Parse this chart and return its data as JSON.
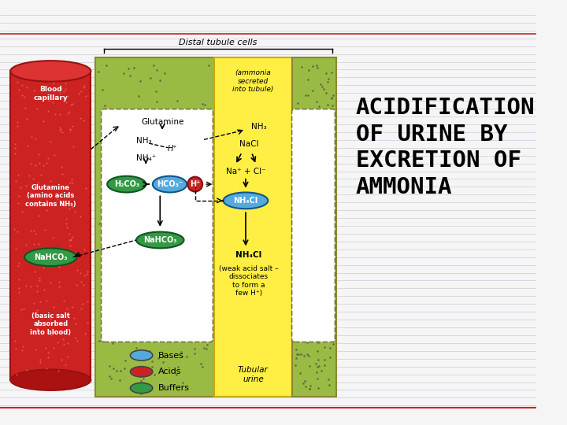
{
  "title": "ACIDIFICATION\nOF URINE BY\nEXCRETION OF\nAMMONIA",
  "bg_color": "#f5f5f5",
  "line_color": "#ccccdd",
  "red_line_color": "#cc2222",
  "red_cyl_color": "#cc2222",
  "red_cyl_dark": "#991111",
  "green_color": "#99bb44",
  "yellow_color": "#ffee44",
  "blue_oval": "#55aadd",
  "red_oval": "#cc2222",
  "green_oval": "#339944",
  "dot_color": "#666644",
  "legend": [
    {
      "label": "Bases",
      "color": "#55aadd"
    },
    {
      "label": "Acids",
      "color": "#cc2222"
    },
    {
      "label": "Buffers",
      "color": "#339944"
    }
  ]
}
